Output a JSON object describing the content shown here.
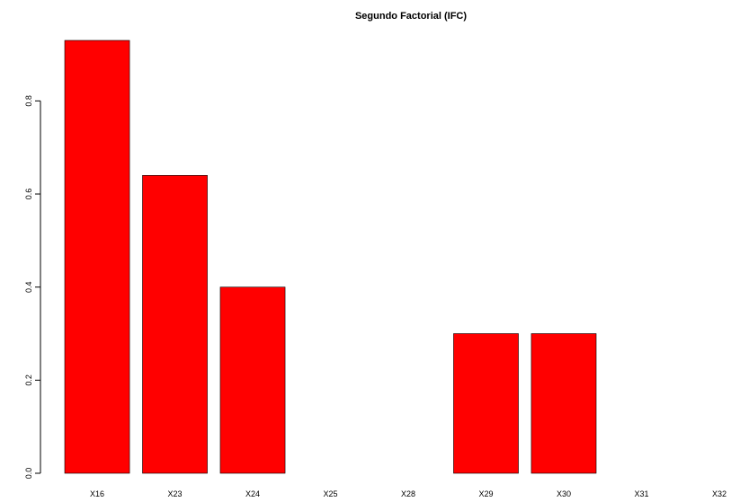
{
  "chart_data": {
    "type": "bar",
    "title": "Segundo Factorial (IFC)",
    "xlabel": "",
    "ylabel": "",
    "categories": [
      "X16",
      "X23",
      "X24",
      "X25",
      "X28",
      "X29",
      "X30",
      "X31",
      "X32"
    ],
    "values": [
      0.93,
      0.64,
      0.4,
      0.0,
      0.0,
      0.3,
      0.3,
      0.0,
      0.0
    ],
    "ylim": [
      0,
      0.93
    ],
    "yticks": [
      0.0,
      0.2,
      0.4,
      0.6,
      0.8
    ],
    "ytick_labels": [
      "0.0",
      "0.2",
      "0.4",
      "0.6",
      "0.8"
    ],
    "bar_color": "#ff0000",
    "grid": false,
    "legend": "none"
  }
}
